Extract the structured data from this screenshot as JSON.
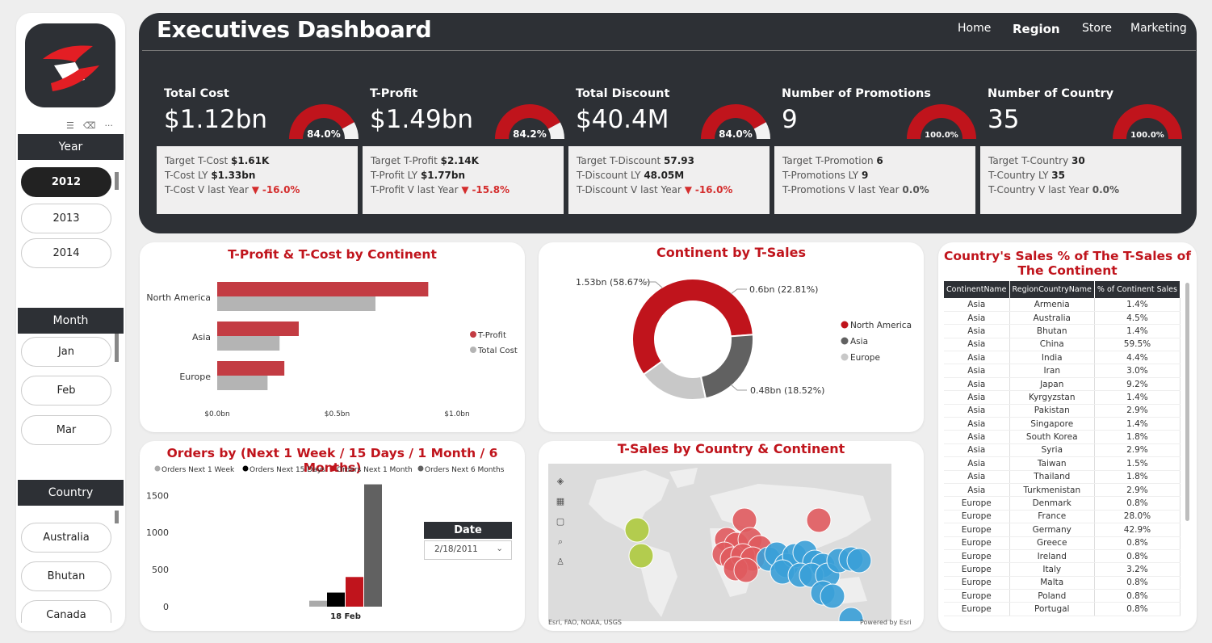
{
  "sidebar": {
    "year_header": "Year",
    "years": [
      "2012",
      "2013",
      "2014"
    ],
    "month_header": "Month",
    "months": [
      "Jan",
      "Feb",
      "Mar"
    ],
    "country_header": "Country",
    "countries": [
      "Australia",
      "Bhutan",
      "Canada"
    ]
  },
  "header": {
    "title": "Executives Dashboard",
    "nav": [
      "Home",
      "Region",
      "Store",
      "Marketing"
    ],
    "active_nav": "Region"
  },
  "kpis": [
    {
      "label": "Total Cost",
      "value": "$1.12bn",
      "gauge": "84.0%",
      "gauge_fraction": 0.84,
      "l1k": "Target T-Cost",
      "l1v": "$1.61K",
      "l2k": "T-Cost LY",
      "l2v": "$1.33bn",
      "l3k": "T-Cost V last Year",
      "l3v": "-16.0%",
      "l3neg": true
    },
    {
      "label": "T-Profit",
      "value": "$1.49bn",
      "gauge": "84.2%",
      "gauge_fraction": 0.842,
      "l1k": "Target T-Profit",
      "l1v": "$2.14K",
      "l2k": "T-Profit LY",
      "l2v": "$1.77bn",
      "l3k": "T-Profit V last Year",
      "l3v": "-15.8%",
      "l3neg": true
    },
    {
      "label": "Total Discount",
      "value": "$40.4M",
      "gauge": "84.0%",
      "gauge_fraction": 0.84,
      "l1k": "Target T-Discount",
      "l1v": "57.93",
      "l2k": "T-Discount LY",
      "l2v": "48.05M",
      "l3k": "T-Discount V last Year",
      "l3v": "-16.0%",
      "l3neg": true
    },
    {
      "label": "Number of Promotions",
      "value": "9",
      "gauge": "100.0%",
      "gauge_fraction": 1.0,
      "l1k": "Target T-Promotion",
      "l1v": "6",
      "l2k": "T-Promotions LY",
      "l2v": "9",
      "l3k": "T-Promotions V last Year",
      "l3v": "0.0%",
      "l3neg": false
    },
    {
      "label": "Number of Country",
      "value": "35",
      "gauge": "100.0%",
      "gauge_fraction": 1.0,
      "l1k": "Target T-Country",
      "l1v": "30",
      "l2k": "T-Country LY",
      "l2v": "35",
      "l3k": "T-Country V last Year",
      "l3v": "0.0%",
      "l3neg": false
    }
  ],
  "colors": {
    "accent": "#c0141c",
    "dark": "#2d3035",
    "profit": "#c33c43",
    "cost": "#b4b4b4",
    "asia": "#616161",
    "europe": "#c8c8c8"
  },
  "chart_data": [
    {
      "type": "bar",
      "title": "T-Profit & T-Cost by Continent",
      "categories": [
        "North America",
        "Asia",
        "Europe"
      ],
      "series": [
        {
          "name": "T-Profit",
          "values": [
            0.88,
            0.34,
            0.28
          ]
        },
        {
          "name": "Total Cost",
          "values": [
            0.66,
            0.26,
            0.21
          ]
        }
      ],
      "xlim": [
        0,
        1.0
      ],
      "xticks": [
        "$0.0bn",
        "$0.5bn",
        "$1.0bn"
      ]
    },
    {
      "type": "pie",
      "title": "Continent by T-Sales",
      "labels": [
        "North America",
        "Asia",
        "Europe"
      ],
      "values": [
        58.67,
        22.81,
        18.52
      ],
      "data_labels": [
        "1.53bn (58.67%)",
        "0.6bn (22.81%)",
        "0.48bn (18.52%)"
      ]
    },
    {
      "type": "bar",
      "title": "Orders by (Next 1 Week / 15 Days / 1 Month / 6 Months)",
      "categories": [
        "18 Feb"
      ],
      "series": [
        {
          "name": "Orders Next 1 Week",
          "values": [
            80
          ]
        },
        {
          "name": "Orders Next 15 Days",
          "values": [
            190
          ]
        },
        {
          "name": "Orders Next 1 Month",
          "values": [
            400
          ]
        },
        {
          "name": "Orders Next 6 Months",
          "values": [
            1650
          ]
        }
      ],
      "ylim": [
        0,
        1700
      ],
      "yticks": [
        0,
        500,
        1000,
        1500
      ]
    },
    {
      "type": "table",
      "title": "Country's Sales % of The T-Sales of The Continent",
      "columns": [
        "ContinentName",
        "RegionCountryName",
        "% of Continent Sales"
      ],
      "rows": [
        [
          "Asia",
          "Armenia",
          "1.4%"
        ],
        [
          "Asia",
          "Australia",
          "4.5%"
        ],
        [
          "Asia",
          "Bhutan",
          "1.4%"
        ],
        [
          "Asia",
          "China",
          "59.5%"
        ],
        [
          "Asia",
          "India",
          "4.4%"
        ],
        [
          "Asia",
          "Iran",
          "3.0%"
        ],
        [
          "Asia",
          "Japan",
          "9.2%"
        ],
        [
          "Asia",
          "Kyrgyzstan",
          "1.4%"
        ],
        [
          "Asia",
          "Pakistan",
          "2.9%"
        ],
        [
          "Asia",
          "Singapore",
          "1.4%"
        ],
        [
          "Asia",
          "South Korea",
          "1.8%"
        ],
        [
          "Asia",
          "Syria",
          "2.9%"
        ],
        [
          "Asia",
          "Taiwan",
          "1.5%"
        ],
        [
          "Asia",
          "Thailand",
          "1.8%"
        ],
        [
          "Asia",
          "Turkmenistan",
          "2.9%"
        ],
        [
          "Europe",
          "Denmark",
          "0.8%"
        ],
        [
          "Europe",
          "France",
          "28.0%"
        ],
        [
          "Europe",
          "Germany",
          "42.9%"
        ],
        [
          "Europe",
          "Greece",
          "0.8%"
        ],
        [
          "Europe",
          "Ireland",
          "0.8%"
        ],
        [
          "Europe",
          "Italy",
          "3.2%"
        ],
        [
          "Europe",
          "Malta",
          "0.8%"
        ],
        [
          "Europe",
          "Poland",
          "0.8%"
        ],
        [
          "Europe",
          "Portugal",
          "0.8%"
        ]
      ]
    }
  ],
  "map": {
    "title": "T-Sales by Country & Continent",
    "attribution": "Esri, FAO, NOAA, USGS",
    "powered": "Powered by Esri"
  },
  "date_slicer": {
    "header": "Date",
    "value": "2/18/2011"
  }
}
